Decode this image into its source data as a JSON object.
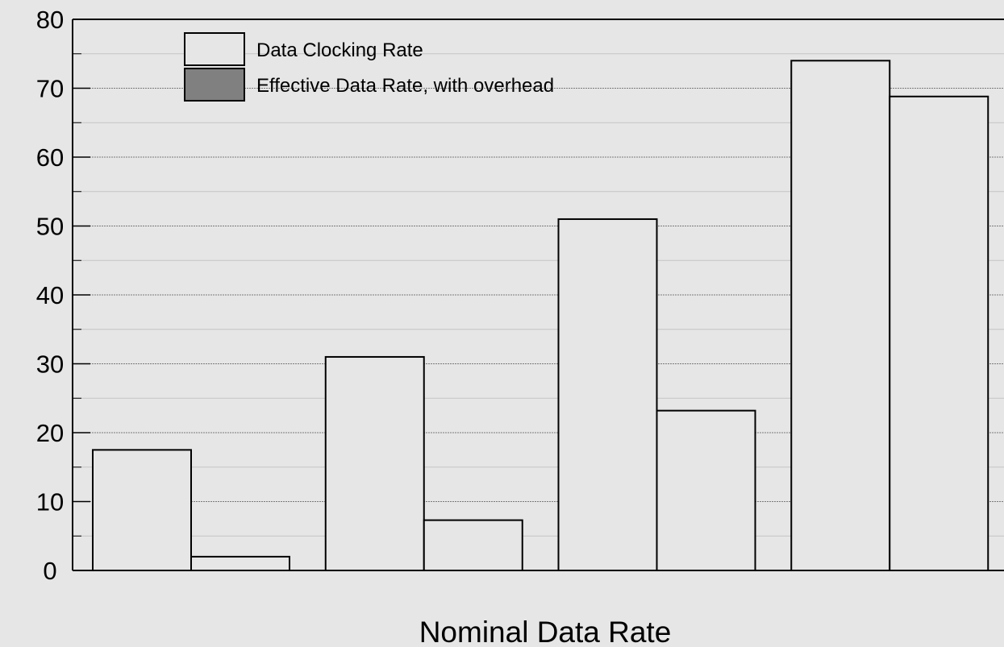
{
  "chart_data": {
    "type": "bar",
    "title": "",
    "xlabel": "Nominal Data Rate",
    "ylabel": "",
    "ylim": [
      0,
      80
    ],
    "yticks": [
      0,
      10,
      20,
      30,
      40,
      50,
      60,
      70,
      80
    ],
    "grid": true,
    "legend_position": "top-left",
    "categories": [
      "",
      "",
      "",
      ""
    ],
    "series": [
      {
        "name": "Data Clocking Rate",
        "values": [
          17.5,
          31,
          51,
          74
        ],
        "color": "#e6e6e6"
      },
      {
        "name": "Effective Data Rate, with overhead",
        "values": [
          2,
          7.3,
          23.2,
          68.8
        ],
        "color": "#e6e6e6",
        "legend_swatch_color": "#808080"
      }
    ]
  }
}
